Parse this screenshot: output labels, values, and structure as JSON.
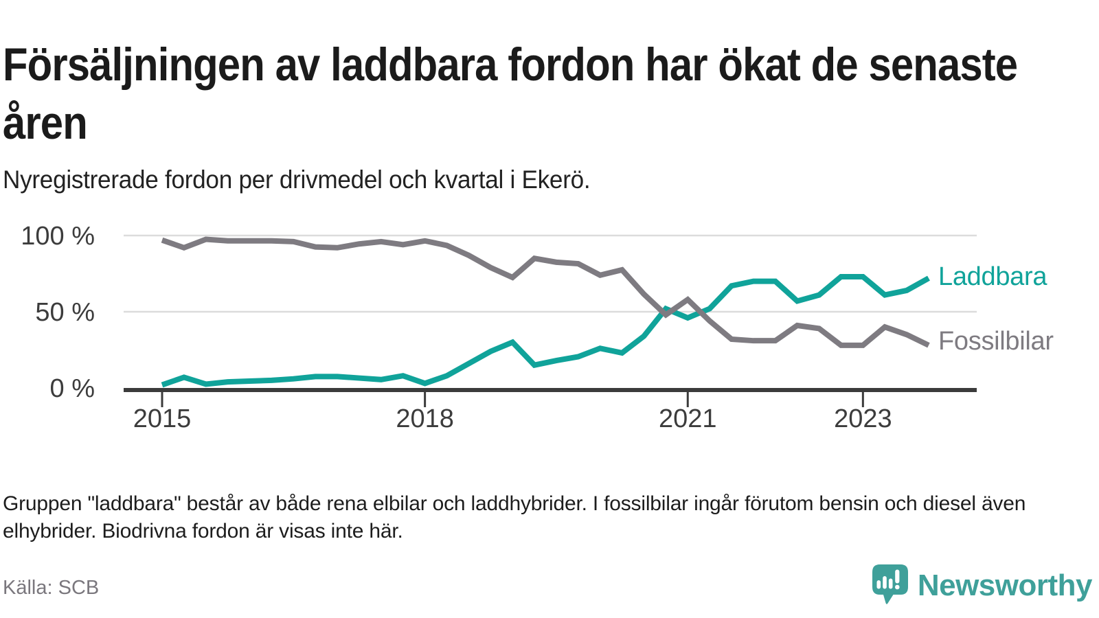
{
  "header": {
    "title": "Försäljningen av laddbara fordon har ökat de senaste åren",
    "subtitle": "Nyregistrerade fordon per drivmedel och kvartal i Ekerö."
  },
  "chart_data": {
    "type": "line",
    "unit": "%",
    "title": "Nyregistrerade fordon per drivmedel och kvartal i Ekerö",
    "categories": [
      "2015 Q1",
      "2015 Q2",
      "2015 Q3",
      "2015 Q4",
      "2016 Q1",
      "2016 Q2",
      "2016 Q3",
      "2016 Q4",
      "2017 Q1",
      "2017 Q2",
      "2017 Q3",
      "2017 Q4",
      "2018 Q1",
      "2018 Q2",
      "2018 Q3",
      "2018 Q4",
      "2019 Q1",
      "2019 Q2",
      "2019 Q3",
      "2019 Q4",
      "2020 Q1",
      "2020 Q2",
      "2020 Q3",
      "2020 Q4",
      "2021 Q1",
      "2021 Q2",
      "2021 Q3",
      "2021 Q4",
      "2022 Q1",
      "2022 Q2",
      "2022 Q3",
      "2022 Q4",
      "2023 Q1",
      "2023 Q2",
      "2023 Q3",
      "2023 Q4"
    ],
    "series": [
      {
        "name": "Laddbara",
        "color": "#10a39a",
        "values": [
          2,
          7,
          2.5,
          4,
          4.5,
          5,
          6,
          7.5,
          7.5,
          6.5,
          5.5,
          8,
          3,
          8,
          16,
          24,
          30,
          15,
          18,
          20.5,
          26,
          23,
          34,
          52,
          46,
          52,
          67,
          70,
          70,
          57,
          61,
          73,
          73,
          61,
          64,
          72
        ]
      },
      {
        "name": "Fossilbilar",
        "color": "#7e7b81",
        "values": [
          97,
          92,
          97.5,
          96.5,
          96.5,
          96.5,
          96,
          92.5,
          92,
          94.5,
          96,
          94,
          96.5,
          93.5,
          87,
          79,
          72.5,
          85,
          82.5,
          81.5,
          74,
          77.5,
          61.5,
          48,
          58,
          44,
          32,
          31,
          31,
          41,
          39,
          28,
          28,
          40,
          35,
          28
        ]
      }
    ],
    "y_ticks": [
      {
        "label": "0 %",
        "value": 0
      },
      {
        "label": "50 %",
        "value": 50
      },
      {
        "label": "100 %",
        "value": 100
      }
    ],
    "x_ticks": [
      {
        "label": "2015",
        "index": 0
      },
      {
        "label": "2018",
        "index": 12
      },
      {
        "label": "2021",
        "index": 24
      },
      {
        "label": "2023",
        "index": 32
      }
    ],
    "ylim": [
      0,
      100
    ],
    "grid": "horizontal",
    "legend_position": "right-of-line-ends",
    "colors": {
      "grid": "#dcdcdc",
      "axis": "#3b3b3b",
      "tick_text": "#3c3c3c"
    }
  },
  "footnote": "Gruppen \"laddbara\" består av både rena elbilar och laddhybrider. I fossilbilar ingår förutom bensin och diesel även elhybrider. Biodrivna fordon är visas inte här.",
  "source": "Källa: SCB",
  "branding": {
    "name": "Newsworthy",
    "color": "#3fa09a",
    "icon": "newsworthy-speech-bubble-bar-chart-icon"
  }
}
